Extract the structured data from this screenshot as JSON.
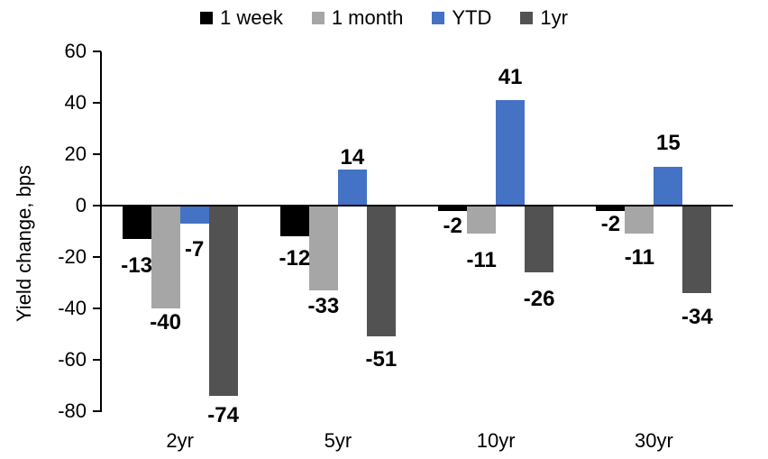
{
  "chart_data": {
    "type": "bar",
    "title": "",
    "ylabel": "Yield change, bps",
    "xlabel": "",
    "categories": [
      "2yr",
      "5yr",
      "10yr",
      "30yr"
    ],
    "series": [
      {
        "name": "1 week",
        "color": "#000000",
        "values": [
          -13,
          -12,
          -2,
          -2
        ]
      },
      {
        "name": "1 month",
        "color": "#A6A6A6",
        "values": [
          -40,
          -33,
          -11,
          -11
        ]
      },
      {
        "name": "YTD",
        "color": "#4472C4",
        "values": [
          -7,
          14,
          41,
          15
        ]
      },
      {
        "name": "1yr",
        "color": "#525252",
        "values": [
          -74,
          -51,
          -26,
          -34
        ]
      }
    ],
    "ylim": [
      -80,
      60
    ],
    "yticks": [
      60,
      40,
      20,
      0,
      -20,
      -40,
      -60,
      -80
    ],
    "grid": false,
    "legend_position": "top",
    "data_labels": "outside-end",
    "label_gaps": [
      [
        21,
        7,
        20,
        13
      ],
      [
        16,
        9,
        4,
        17
      ],
      [
        8,
        21,
        16,
        21
      ],
      [
        6,
        18,
        17,
        18
      ]
    ]
  }
}
